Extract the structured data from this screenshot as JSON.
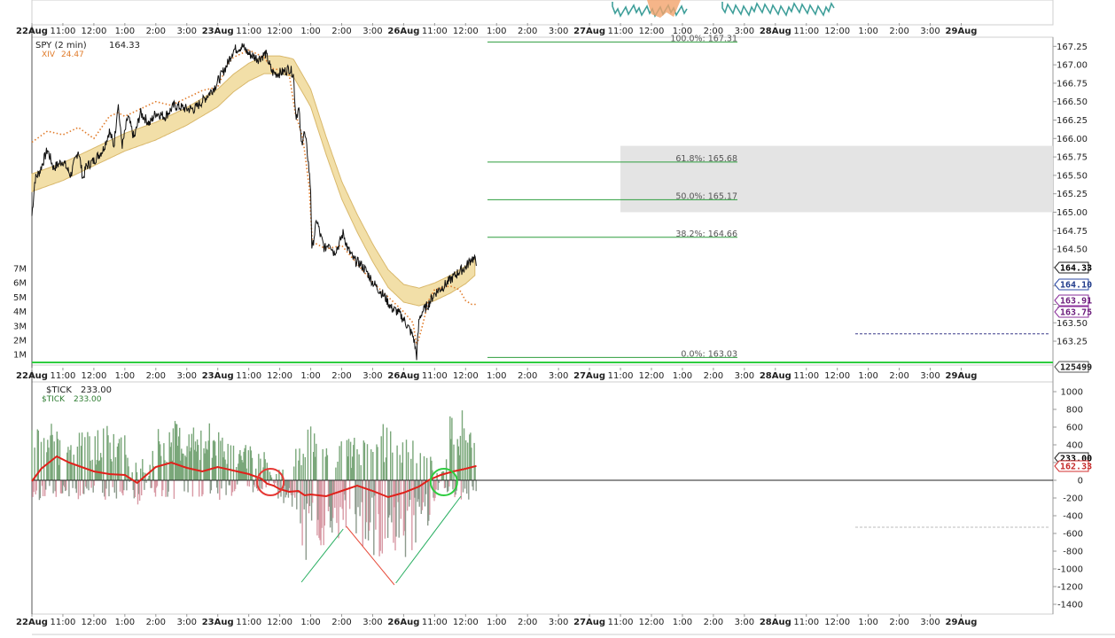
{
  "chart_data": [
    {
      "type": "line",
      "panel": "price",
      "legend": [
        {
          "symbol": "SPY (2 min)",
          "value": "164.33",
          "color": "#222222"
        },
        {
          "symbol": "XIV",
          "value": "24.47",
          "color": "#e07b2a"
        }
      ],
      "ylim": [
        162.95,
        167.35
      ],
      "price_ticks": [
        "167.25",
        "167.00",
        "166.75",
        "166.50",
        "166.25",
        "166.00",
        "165.75",
        "165.50",
        "165.25",
        "165.00",
        "164.75",
        "164.50",
        "164.25",
        "164.00",
        "163.75",
        "163.50",
        "163.25"
      ],
      "volume_ticks": [
        "7M",
        "6M",
        "5M",
        "4M",
        "3M",
        "2M",
        "1M"
      ],
      "price_tags": [
        {
          "label": "164.33",
          "style": "dark"
        },
        {
          "label": "164.10",
          "style": "blue"
        },
        {
          "label": "163.91",
          "style": "purple"
        },
        {
          "label": "163.75",
          "style": "purple"
        },
        {
          "label": "125499",
          "style": "plain"
        }
      ],
      "fib_levels": [
        {
          "label": "100.0%: 167.31",
          "value": 167.31
        },
        {
          "label": "61.8%: 165.68",
          "value": 165.68
        },
        {
          "label": "50.0%: 165.17",
          "value": 165.17
        },
        {
          "label": "38.2%: 164.66",
          "value": 164.66
        },
        {
          "label": "0.0%: 163.03",
          "value": 163.03
        }
      ],
      "shaded_zone": [
        165.0,
        165.9
      ],
      "spy_series": [
        [
          0,
          164.95
        ],
        [
          0.1,
          165.45
        ],
        [
          0.25,
          165.55
        ],
        [
          0.5,
          165.85
        ],
        [
          0.7,
          165.6
        ],
        [
          1.0,
          165.7
        ],
        [
          1.25,
          165.5
        ],
        [
          1.5,
          165.85
        ],
        [
          1.65,
          165.45
        ],
        [
          1.75,
          165.62
        ],
        [
          2.0,
          165.7
        ],
        [
          2.3,
          165.85
        ],
        [
          2.5,
          166.1
        ],
        [
          2.65,
          165.9
        ],
        [
          2.78,
          166.5
        ],
        [
          2.86,
          166.1
        ],
        [
          2.92,
          165.9
        ],
        [
          3.1,
          166.3
        ],
        [
          3.3,
          166.0
        ],
        [
          3.5,
          166.35
        ],
        [
          3.8,
          166.2
        ],
        [
          4.0,
          166.35
        ],
        [
          4.3,
          166.3
        ],
        [
          4.6,
          166.45
        ],
        [
          5.0,
          166.4
        ],
        [
          5.25,
          166.4
        ],
        [
          5.6,
          166.55
        ],
        [
          5.9,
          166.7
        ],
        [
          6.1,
          166.85
        ],
        [
          6.3,
          167.0
        ],
        [
          6.5,
          167.2
        ],
        [
          6.8,
          167.25
        ],
        [
          7.0,
          167.15
        ],
        [
          7.3,
          167.08
        ],
        [
          7.55,
          167.15
        ],
        [
          7.75,
          166.9
        ],
        [
          7.9,
          166.88
        ],
        [
          8.1,
          166.9
        ],
        [
          8.3,
          166.95
        ],
        [
          8.44,
          166.88
        ],
        [
          8.52,
          166.3
        ],
        [
          8.62,
          166.4
        ],
        [
          8.7,
          165.9
        ],
        [
          8.78,
          166.1
        ],
        [
          8.85,
          165.95
        ],
        [
          8.92,
          165.7
        ],
        [
          9.0,
          165.3
        ],
        [
          9.04,
          164.45
        ],
        [
          9.1,
          164.65
        ],
        [
          9.2,
          164.9
        ],
        [
          9.3,
          164.7
        ],
        [
          9.45,
          164.5
        ],
        [
          9.6,
          164.6
        ],
        [
          9.75,
          164.45
        ],
        [
          9.9,
          164.55
        ],
        [
          10.05,
          164.72
        ],
        [
          10.2,
          164.5
        ],
        [
          10.4,
          164.35
        ],
        [
          10.6,
          164.3
        ],
        [
          10.8,
          164.2
        ],
        [
          11.0,
          164.05
        ],
        [
          11.2,
          163.95
        ],
        [
          11.4,
          163.85
        ],
        [
          11.6,
          163.7
        ],
        [
          11.8,
          163.65
        ],
        [
          12.0,
          163.55
        ],
        [
          12.2,
          163.4
        ],
        [
          12.32,
          163.3
        ],
        [
          12.42,
          163.05
        ],
        [
          12.5,
          163.55
        ],
        [
          12.6,
          163.65
        ],
        [
          12.8,
          163.75
        ],
        [
          13.0,
          163.9
        ],
        [
          13.3,
          164.0
        ],
        [
          13.55,
          164.1
        ],
        [
          13.8,
          164.2
        ],
        [
          14.0,
          164.25
        ],
        [
          14.2,
          164.38
        ],
        [
          14.35,
          164.33
        ]
      ],
      "xiv_series": [
        [
          0,
          165.95
        ],
        [
          0.5,
          166.1
        ],
        [
          1.0,
          166.05
        ],
        [
          1.5,
          166.15
        ],
        [
          2.0,
          166.0
        ],
        [
          2.5,
          166.3
        ],
        [
          2.78,
          166.35
        ],
        [
          3.0,
          166.3
        ],
        [
          3.5,
          166.4
        ],
        [
          4.0,
          166.5
        ],
        [
          4.5,
          166.45
        ],
        [
          5.0,
          166.55
        ],
        [
          5.5,
          166.65
        ],
        [
          6.0,
          166.7
        ],
        [
          6.3,
          167.0
        ],
        [
          6.5,
          167.1
        ],
        [
          7.0,
          167.2
        ],
        [
          7.5,
          167.1
        ],
        [
          7.75,
          166.95
        ],
        [
          8.0,
          166.93
        ],
        [
          8.3,
          166.88
        ],
        [
          8.5,
          166.35
        ],
        [
          8.75,
          166.0
        ],
        [
          8.95,
          165.35
        ],
        [
          9.05,
          164.6
        ],
        [
          9.5,
          164.5
        ],
        [
          10.0,
          164.55
        ],
        [
          10.5,
          164.3
        ],
        [
          11.0,
          164.05
        ],
        [
          11.5,
          163.85
        ],
        [
          12.0,
          163.65
        ],
        [
          12.3,
          163.5
        ],
        [
          12.42,
          163.2
        ],
        [
          12.5,
          163.3
        ],
        [
          12.6,
          163.45
        ],
        [
          12.8,
          163.8
        ],
        [
          13.0,
          163.95
        ],
        [
          13.5,
          164.0
        ],
        [
          13.8,
          163.95
        ],
        [
          14.0,
          163.8
        ],
        [
          14.2,
          163.75
        ],
        [
          14.35,
          163.75
        ]
      ],
      "ma_band_series": [
        [
          0,
          165.4
        ],
        [
          1,
          165.55
        ],
        [
          2,
          165.75
        ],
        [
          3,
          165.95
        ],
        [
          4,
          166.1
        ],
        [
          5,
          166.3
        ],
        [
          6,
          166.55
        ],
        [
          6.5,
          166.75
        ],
        [
          7,
          166.9
        ],
        [
          7.5,
          167.0
        ],
        [
          8.0,
          167.0
        ],
        [
          8.44,
          166.96
        ],
        [
          9.0,
          166.55
        ],
        [
          9.5,
          165.9
        ],
        [
          10.0,
          165.3
        ],
        [
          10.5,
          164.85
        ],
        [
          11.0,
          164.45
        ],
        [
          11.5,
          164.1
        ],
        [
          12.0,
          163.9
        ],
        [
          12.5,
          163.85
        ],
        [
          13.0,
          163.92
        ],
        [
          13.5,
          164.02
        ],
        [
          14.0,
          164.15
        ],
        [
          14.35,
          164.28
        ]
      ],
      "ma_band_width": 0.12
    },
    {
      "type": "bar",
      "panel": "tick",
      "legend": [
        {
          "symbol": "$TICK",
          "value": "233.00",
          "color": "#222222"
        },
        {
          "symbol": "$TICK",
          "value": "233.00",
          "color": "#2e7d32"
        }
      ],
      "ylim": [
        -1450,
        1050
      ],
      "y_ticks": [
        1000,
        800,
        600,
        400,
        200,
        0,
        -200,
        -400,
        -600,
        -800,
        -1000,
        -1200,
        -1400
      ],
      "tags": [
        {
          "label": "233.00",
          "style": "dark"
        },
        {
          "label": "162.33",
          "style": "red"
        }
      ],
      "tick_ma_series": [
        [
          0,
          -10
        ],
        [
          0.3,
          130
        ],
        [
          0.8,
          270
        ],
        [
          1.2,
          200
        ],
        [
          1.6,
          150
        ],
        [
          2.0,
          100
        ],
        [
          2.5,
          70
        ],
        [
          3.0,
          60
        ],
        [
          3.4,
          -30
        ],
        [
          3.7,
          60
        ],
        [
          4.0,
          150
        ],
        [
          4.5,
          200
        ],
        [
          5.0,
          140
        ],
        [
          5.5,
          100
        ],
        [
          6.0,
          150
        ],
        [
          6.5,
          110
        ],
        [
          7.0,
          70
        ],
        [
          7.4,
          20
        ],
        [
          7.6,
          -40
        ],
        [
          7.8,
          -60
        ],
        [
          8.0,
          -100
        ],
        [
          8.3,
          -130
        ],
        [
          8.6,
          -120
        ],
        [
          8.8,
          -170
        ],
        [
          9.0,
          -160
        ],
        [
          9.5,
          -180
        ],
        [
          10.0,
          -120
        ],
        [
          10.5,
          -60
        ],
        [
          11.0,
          -120
        ],
        [
          11.5,
          -190
        ],
        [
          12.0,
          -140
        ],
        [
          12.5,
          -70
        ],
        [
          12.8,
          0
        ],
        [
          13.2,
          60
        ],
        [
          13.6,
          100
        ],
        [
          14.0,
          130
        ],
        [
          14.35,
          162.33
        ]
      ],
      "tick_bar_envelope": [
        [
          0,
          600
        ],
        [
          0.5,
          700
        ],
        [
          1.0,
          500
        ],
        [
          1.5,
          600
        ],
        [
          2.0,
          550
        ],
        [
          2.5,
          650
        ],
        [
          3.0,
          550
        ],
        [
          3.3,
          -300
        ],
        [
          3.5,
          -500
        ],
        [
          4.0,
          600
        ],
        [
          4.5,
          700
        ],
        [
          5.0,
          600
        ],
        [
          5.5,
          600
        ],
        [
          6.0,
          700
        ],
        [
          6.5,
          500
        ],
        [
          7.0,
          400
        ],
        [
          7.5,
          350
        ],
        [
          8.0,
          -300
        ],
        [
          8.3,
          -350
        ],
        [
          8.6,
          -600
        ],
        [
          8.8,
          -1100
        ],
        [
          9.0,
          -900
        ],
        [
          9.5,
          -800
        ],
        [
          10.0,
          -650
        ],
        [
          10.5,
          -700
        ],
        [
          11.0,
          -850
        ],
        [
          11.5,
          -1000
        ],
        [
          12.0,
          -950
        ],
        [
          12.5,
          -700
        ],
        [
          13.0,
          -400
        ],
        [
          13.5,
          750
        ],
        [
          13.8,
          900
        ],
        [
          14.35,
          400
        ]
      ],
      "trendlines": [
        {
          "color": "#27ae60",
          "from": [
            8.7,
            -1150
          ],
          "to": [
            10.05,
            -550
          ]
        },
        {
          "color": "#e74c3c",
          "from": [
            10.15,
            -520
          ],
          "to": [
            11.7,
            -1180
          ]
        },
        {
          "color": "#27ae60",
          "from": [
            11.75,
            -1160
          ],
          "to": [
            13.85,
            -180
          ]
        }
      ],
      "circles": [
        {
          "x": 7.7,
          "y": -20,
          "color": "#e53935"
        },
        {
          "x": 13.3,
          "y": -20,
          "color": "#2ecc40"
        }
      ],
      "dashed_level": -530
    }
  ],
  "x_axis_labels": [
    "22Aug",
    "11:00",
    "12:00",
    "1:00",
    "2:00",
    "3:00",
    "23Aug",
    "11:00",
    "12:00",
    "1:00",
    "2:00",
    "3:00",
    "26Aug",
    "11:00",
    "12:00",
    "1:00",
    "2:00",
    "3:00",
    "27Aug",
    "11:00",
    "12:00",
    "1:00",
    "2:00",
    "3:00",
    "28Aug",
    "11:00",
    "12:00",
    "1:00",
    "2:00",
    "3:00",
    "29Aug"
  ],
  "date_labels": [
    "22Aug",
    "23Aug",
    "26Aug",
    "27Aug",
    "28Aug",
    "29Aug"
  ],
  "colors": {
    "spy": "#111111",
    "xiv": "#e07b2a",
    "ma_band_fill": "#f2dfa8",
    "ma_band_edge": "#d9b86b",
    "fib": "#2e9e3e",
    "shaded_zone": "#e4e4e4",
    "tick_pos": "#7aa77a",
    "tick_neg": "#d89aa5",
    "tick_ma": "#e0211b",
    "zero_line": "#222222"
  }
}
